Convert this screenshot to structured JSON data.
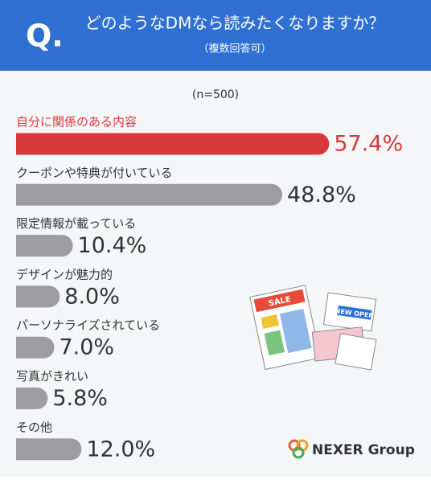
{
  "chart_data": {
    "type": "bar",
    "question_mark": "Q.",
    "title": "どのようなDMなら読みたくなりますか？",
    "subtitle": "（複数回答可）",
    "note": "(n=500)",
    "categories": [
      "自分に関係のある内容",
      "クーポンや特典が付いている",
      "限定情報が載っている",
      "デザインが魅力的",
      "パーソナライズされている",
      "写真がきれい",
      "その他"
    ],
    "values": [
      57.4,
      48.8,
      10.4,
      8.0,
      7.0,
      5.8,
      12.0
    ],
    "value_labels": [
      "57.4%",
      "48.8%",
      "10.4%",
      "8.0%",
      "7.0%",
      "5.8%",
      "12.0%"
    ],
    "colors": [
      "#d8383a",
      "#9d9d9f",
      "#9d9d9f",
      "#9d9d9f",
      "#9d9d9f",
      "#9d9d9f",
      "#9d9d9f"
    ],
    "label_colors": [
      "#d8383a",
      "#333333",
      "#333333",
      "#333333",
      "#333333",
      "#333333",
      "#333333"
    ],
    "xlim": [
      0,
      60
    ],
    "illustration_texts": [
      "SALE",
      "NEW OPEN"
    ],
    "brand": "NEXER Group"
  }
}
